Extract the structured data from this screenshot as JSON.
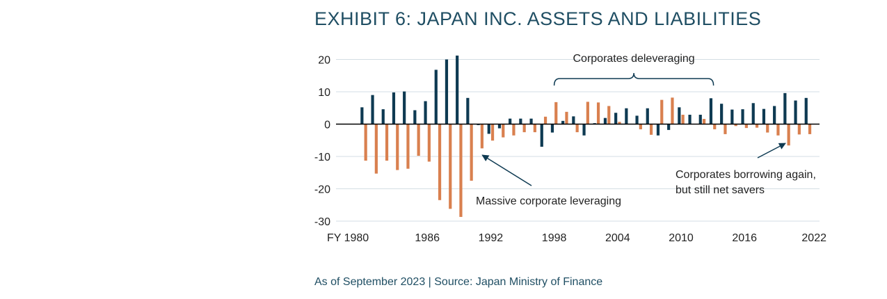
{
  "title": "EXHIBIT 6: JAPAN INC. ASSETS AND LIABILITIES",
  "footer": "As of September 2023 | Source: Japan Ministry of Finance",
  "chart_data": {
    "type": "bar",
    "x": [
      1980,
      1981,
      1982,
      1983,
      1984,
      1985,
      1986,
      1987,
      1988,
      1989,
      1990,
      1991,
      1992,
      1993,
      1994,
      1995,
      1996,
      1997,
      1998,
      1999,
      2000,
      2001,
      2002,
      2003,
      2004,
      2005,
      2006,
      2007,
      2008,
      2009,
      2010,
      2011,
      2012,
      2013,
      2014,
      2015,
      2016,
      2017,
      2018,
      2019,
      2020,
      2021,
      2022
    ],
    "xticks": [
      {
        "year": 1980,
        "label": "FY 1980"
      },
      {
        "year": 1986,
        "label": "1986"
      },
      {
        "year": 1992,
        "label": "1992"
      },
      {
        "year": 1998,
        "label": "1998"
      },
      {
        "year": 2004,
        "label": "2004"
      },
      {
        "year": 2010,
        "label": "2010"
      },
      {
        "year": 2016,
        "label": "2016"
      },
      {
        "year": 2022,
        "label": "2022"
      }
    ],
    "yticks": [
      20,
      10,
      0,
      -10,
      -20,
      -30
    ],
    "ylim": [
      -30,
      22
    ],
    "grid": true,
    "series": [
      {
        "color": "#0e3a52",
        "values": [
          5.2,
          9.0,
          4.6,
          9.8,
          10.1,
          4.3,
          7.1,
          16.8,
          20.0,
          21.2,
          8.1,
          -0.3,
          -3.0,
          -1.3,
          1.7,
          1.7,
          1.7,
          -7.0,
          -2.6,
          1.0,
          2.4,
          -3.5,
          0.3,
          1.9,
          3.5,
          4.9,
          2.6,
          4.9,
          -3.5,
          -1.8,
          5.2,
          2.9,
          2.9,
          8.0,
          6.3,
          4.5,
          4.6,
          6.5,
          4.7,
          5.6,
          9.6,
          7.3,
          8.1
        ]
      },
      {
        "color": "#d9804f",
        "values": [
          -11.3,
          -15.3,
          -11.3,
          -14.2,
          -13.8,
          -9.8,
          -11.6,
          -23.5,
          -26.2,
          -28.7,
          -17.5,
          -7.5,
          -5.1,
          -4.1,
          -3.5,
          -2.5,
          -2.5,
          2.3,
          6.8,
          3.8,
          -2.5,
          6.9,
          6.7,
          5.6,
          0.7,
          0.0,
          -1.6,
          -3.3,
          7.5,
          8.2,
          2.9,
          0.0,
          1.6,
          -1.6,
          -3.1,
          -0.6,
          -1.2,
          -1.1,
          -2.6,
          -3.5,
          -6.6,
          -3.2,
          -3.1
        ]
      }
    ],
    "annotations": {
      "deleveraging": {
        "text": "Corporates deleveraging",
        "from_year": 1998,
        "to_year": 2013
      },
      "leveraging": {
        "text": "Massive corporate leveraging",
        "arrow_to": [
          1991,
          -10
        ]
      },
      "borrowing": {
        "lines": [
          "Corporates borrowing again,",
          "but still net savers"
        ],
        "arrow_to": [
          2020,
          -6.8
        ]
      }
    }
  }
}
